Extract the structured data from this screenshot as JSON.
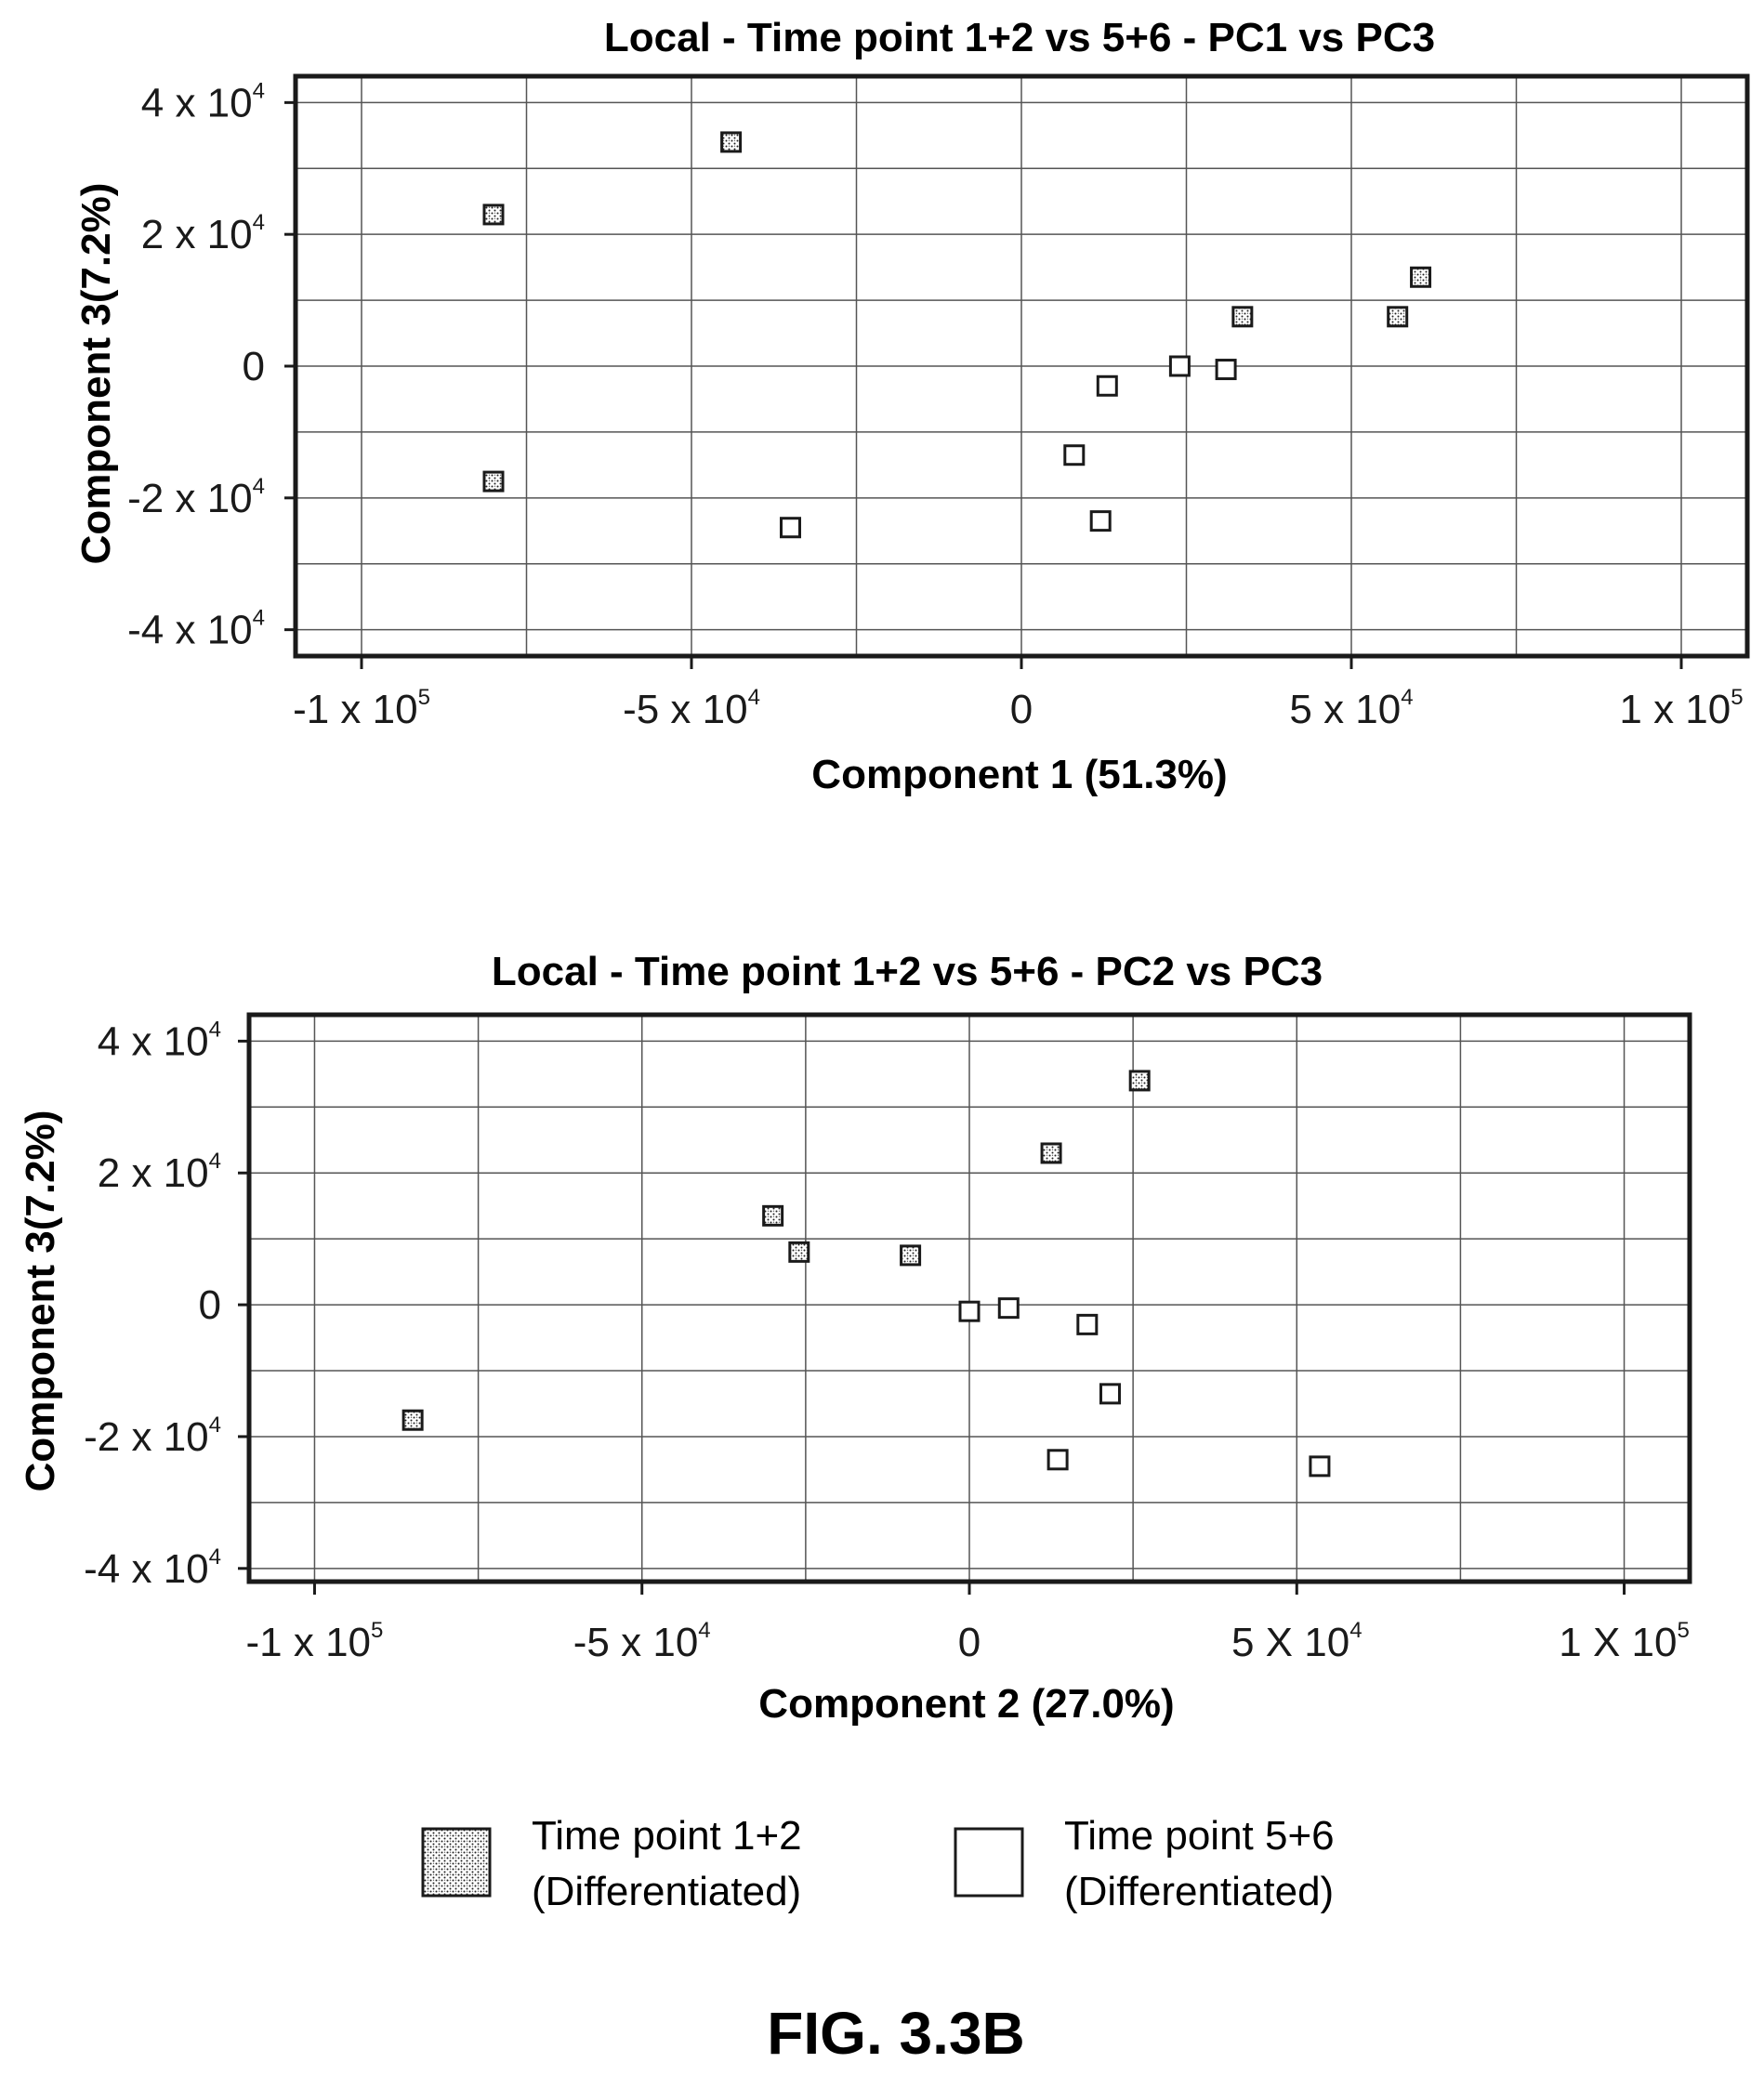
{
  "chart_data": [
    {
      "type": "scatter",
      "title": "Local - Time point 1+2 vs 5+6 - PC1 vs PC3",
      "xlabel": "Component 1 (51.3%)",
      "ylabel": "Component 3(7.2%)",
      "xlim": [
        -110000,
        110000
      ],
      "ylim": [
        -44000,
        44000
      ],
      "grid": true,
      "x_ticks": [
        {
          "value": -100000,
          "base": "-1 x 10",
          "exp": "5"
        },
        {
          "value": -50000,
          "base": "-5 x 10",
          "exp": "4"
        },
        {
          "value": 0,
          "base": "0",
          "exp": ""
        },
        {
          "value": 50000,
          "base": "5 x 10",
          "exp": "4"
        },
        {
          "value": 100000,
          "base": "1 x 10",
          "exp": "5"
        }
      ],
      "y_ticks": [
        {
          "value": 40000,
          "base": "4 x 10",
          "exp": "4"
        },
        {
          "value": 20000,
          "base": "2 x 10",
          "exp": "4"
        },
        {
          "value": 0,
          "base": "0",
          "exp": ""
        },
        {
          "value": -20000,
          "base": "-2 x 10",
          "exp": "4"
        },
        {
          "value": -40000,
          "base": "-4 x 10",
          "exp": "4"
        }
      ],
      "series": [
        {
          "name": "Time point 1+2 (Differentiated)",
          "marker": "stippled-square",
          "points": [
            [
              -80000,
              23000
            ],
            [
              -44000,
              34000
            ],
            [
              -80000,
              -17500
            ],
            [
              33500,
              7500
            ],
            [
              57000,
              7500
            ],
            [
              60500,
              13500
            ]
          ]
        },
        {
          "name": "Time point 5+6 (Differentiated)",
          "marker": "open-square",
          "points": [
            [
              13000,
              -3000
            ],
            [
              24000,
              0
            ],
            [
              31000,
              -500
            ],
            [
              8000,
              -13500
            ],
            [
              12000,
              -23500
            ],
            [
              -35000,
              -24500
            ]
          ]
        }
      ]
    },
    {
      "type": "scatter",
      "title": "Local - Time point 1+2 vs 5+6 - PC2 vs PC3",
      "xlabel": "Component 2 (27.0%)",
      "ylabel": "Component 3(7.2%)",
      "xlim": [
        -110000,
        110000
      ],
      "ylim": [
        -42000,
        44000
      ],
      "grid": true,
      "x_ticks": [
        {
          "value": -100000,
          "base": "-1 x 10",
          "exp": "5"
        },
        {
          "value": -50000,
          "base": "-5 x 10",
          "exp": "4"
        },
        {
          "value": 0,
          "base": "0",
          "exp": ""
        },
        {
          "value": 50000,
          "base": "5 X 10",
          "exp": "4"
        },
        {
          "value": 100000,
          "base": "1 X 10",
          "exp": "5"
        }
      ],
      "y_ticks": [
        {
          "value": 40000,
          "base": "4 x 10",
          "exp": "4"
        },
        {
          "value": 20000,
          "base": "2 x 10",
          "exp": "4"
        },
        {
          "value": 0,
          "base": "0",
          "exp": ""
        },
        {
          "value": -20000,
          "base": "-2 x 10",
          "exp": "4"
        },
        {
          "value": -40000,
          "base": "-4 x 10",
          "exp": "4"
        }
      ],
      "series": [
        {
          "name": "Time point 1+2 (Differentiated)",
          "marker": "stippled-square",
          "points": [
            [
              -85000,
              -17500
            ],
            [
              -30000,
              13500
            ],
            [
              -26000,
              8000
            ],
            [
              -9000,
              7500
            ],
            [
              12500,
              23000
            ],
            [
              26000,
              34000
            ]
          ]
        },
        {
          "name": "Time point 5+6 (Differentiated)",
          "marker": "open-square",
          "points": [
            [
              0,
              -1000
            ],
            [
              6000,
              -500
            ],
            [
              18000,
              -3000
            ],
            [
              21500,
              -13500
            ],
            [
              13500,
              -23500
            ],
            [
              53500,
              -24500
            ]
          ]
        }
      ]
    }
  ],
  "legend": [
    {
      "line1": "Time point 1+2",
      "line2": "(Differentiated)",
      "marker": "stippled-square"
    },
    {
      "line1": "Time point 5+6",
      "line2": "(Differentiated)",
      "marker": "open-square"
    }
  ],
  "figure_label": "FIG. 3.3B",
  "colors": {
    "ink": "#1a1a1a",
    "grid": "#555555",
    "background": "#ffffff"
  }
}
